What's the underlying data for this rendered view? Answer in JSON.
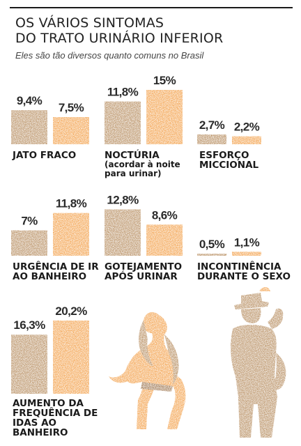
{
  "header": {
    "title_line1": "OS VÁRIOS SINTOMAS",
    "title_line2": "DO TRATO URINÁRIO INFERIOR",
    "subtitle": "Eles são tão diversos quanto comuns no Brasil"
  },
  "colors": {
    "brown": "#a8763f",
    "orange": "#f08b22",
    "rule": "#1a1a1a"
  },
  "chart_data": {
    "type": "bar",
    "unit": "%",
    "series_colors": [
      "brown",
      "orange"
    ],
    "groups": [
      {
        "label": "JATO FRACO",
        "note": "",
        "values": [
          9.4,
          7.5
        ],
        "value_labels": [
          "9,4%",
          "7,5%"
        ]
      },
      {
        "label": "NOCTÚRIA",
        "note": "(acordar à noite para urinar)",
        "values": [
          11.8,
          15
        ],
        "value_labels": [
          "11,8%",
          "15%"
        ]
      },
      {
        "label": "ESFORÇO MICCIONAL",
        "note": "",
        "values": [
          2.7,
          2.2
        ],
        "value_labels": [
          "2,7%",
          "2,2%"
        ]
      },
      {
        "label": "URGÊNCIA DE IR AO BANHEIRO",
        "note": "",
        "values": [
          7,
          11.8
        ],
        "value_labels": [
          "7%",
          "11,8%"
        ]
      },
      {
        "label": "GOTEJAMENTO APÓS URINAR",
        "note": "",
        "values": [
          12.8,
          8.6
        ],
        "value_labels": [
          "12,8%",
          "8,6%"
        ]
      },
      {
        "label": "INCONTINÊNCIA DURANTE O SEXO",
        "note": "",
        "values": [
          0.5,
          1.1
        ],
        "value_labels": [
          "0,5%",
          "1,1%"
        ]
      },
      {
        "label": "AUMENTO DA FREQUÊNCIA DE IDAS AO BANHEIRO",
        "note": "",
        "values": [
          16.3,
          20.2
        ],
        "value_labels": [
          "16,3%",
          "20,2%"
        ]
      }
    ]
  },
  "illustrations": {
    "woman": "seated-woman-figure",
    "man": "man-with-hat-figure"
  }
}
